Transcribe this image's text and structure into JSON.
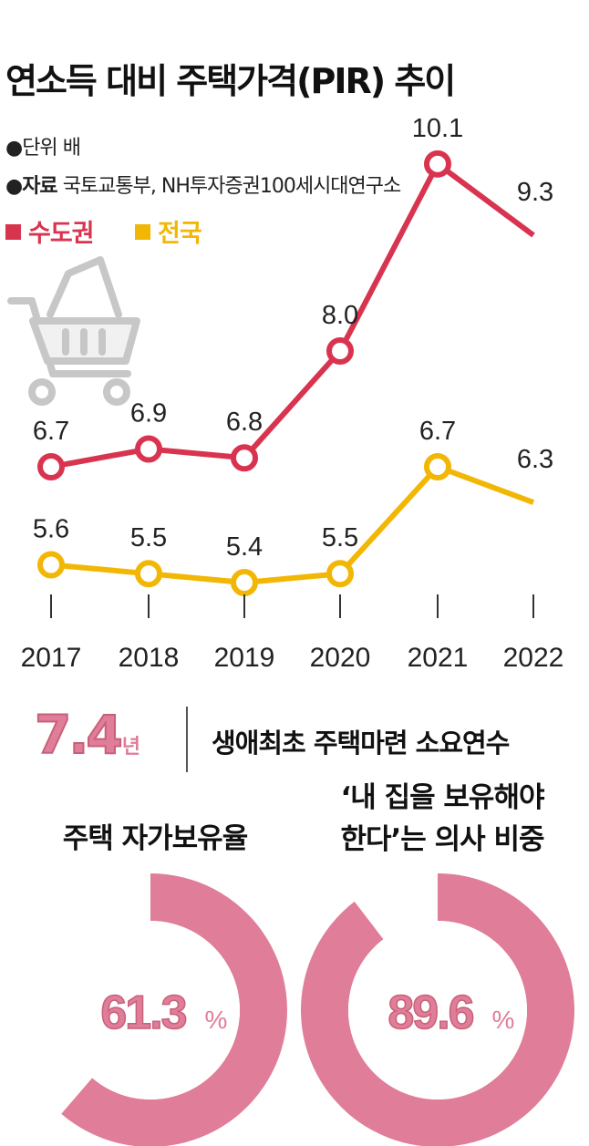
{
  "header": {
    "title": "연소득 대비 주택가격(PIR) 추이",
    "unit_label": "●단위",
    "unit_value": "배",
    "source_label": "●자료",
    "source_value": "국토교통부, NH투자증권100세시대연구소"
  },
  "legend": [
    {
      "name": "수도권",
      "color": "#d9344f"
    },
    {
      "name": "전국",
      "color": "#f2b705"
    }
  ],
  "chart_data": {
    "type": "line",
    "title": "연소득 대비 주택가격(PIR) 추이",
    "ylabel": "배",
    "categories": [
      "2017",
      "2018",
      "2019",
      "2020",
      "2021",
      "2022"
    ],
    "series": [
      {
        "name": "수도권",
        "color": "#d9344f",
        "values": [
          6.7,
          6.9,
          6.8,
          8.0,
          10.1,
          9.3
        ],
        "labels": [
          "6.7",
          "6.9",
          "6.8",
          "8.0",
          "10.1",
          "9.3"
        ]
      },
      {
        "name": "전국",
        "color": "#f2b705",
        "values": [
          5.6,
          5.5,
          5.4,
          5.5,
          6.7,
          6.3
        ],
        "labels": [
          "5.6",
          "5.5",
          "5.4",
          "5.5",
          "6.7",
          "6.3"
        ]
      }
    ]
  },
  "stat": {
    "value": "7.4",
    "unit": "년",
    "label": "생애최초 주택마련 소요연수"
  },
  "donuts": [
    {
      "title_lines": [
        "주택 자가보유율"
      ],
      "value": 61.3,
      "value_text": "61.3",
      "unit": "%",
      "color": "#e07d98"
    },
    {
      "title_lines": [
        "‘내 집을 보유해야",
        "한다’는 의사 비중"
      ],
      "value": 89.6,
      "value_text": "89.6",
      "unit": "%",
      "color": "#e07d98"
    }
  ]
}
